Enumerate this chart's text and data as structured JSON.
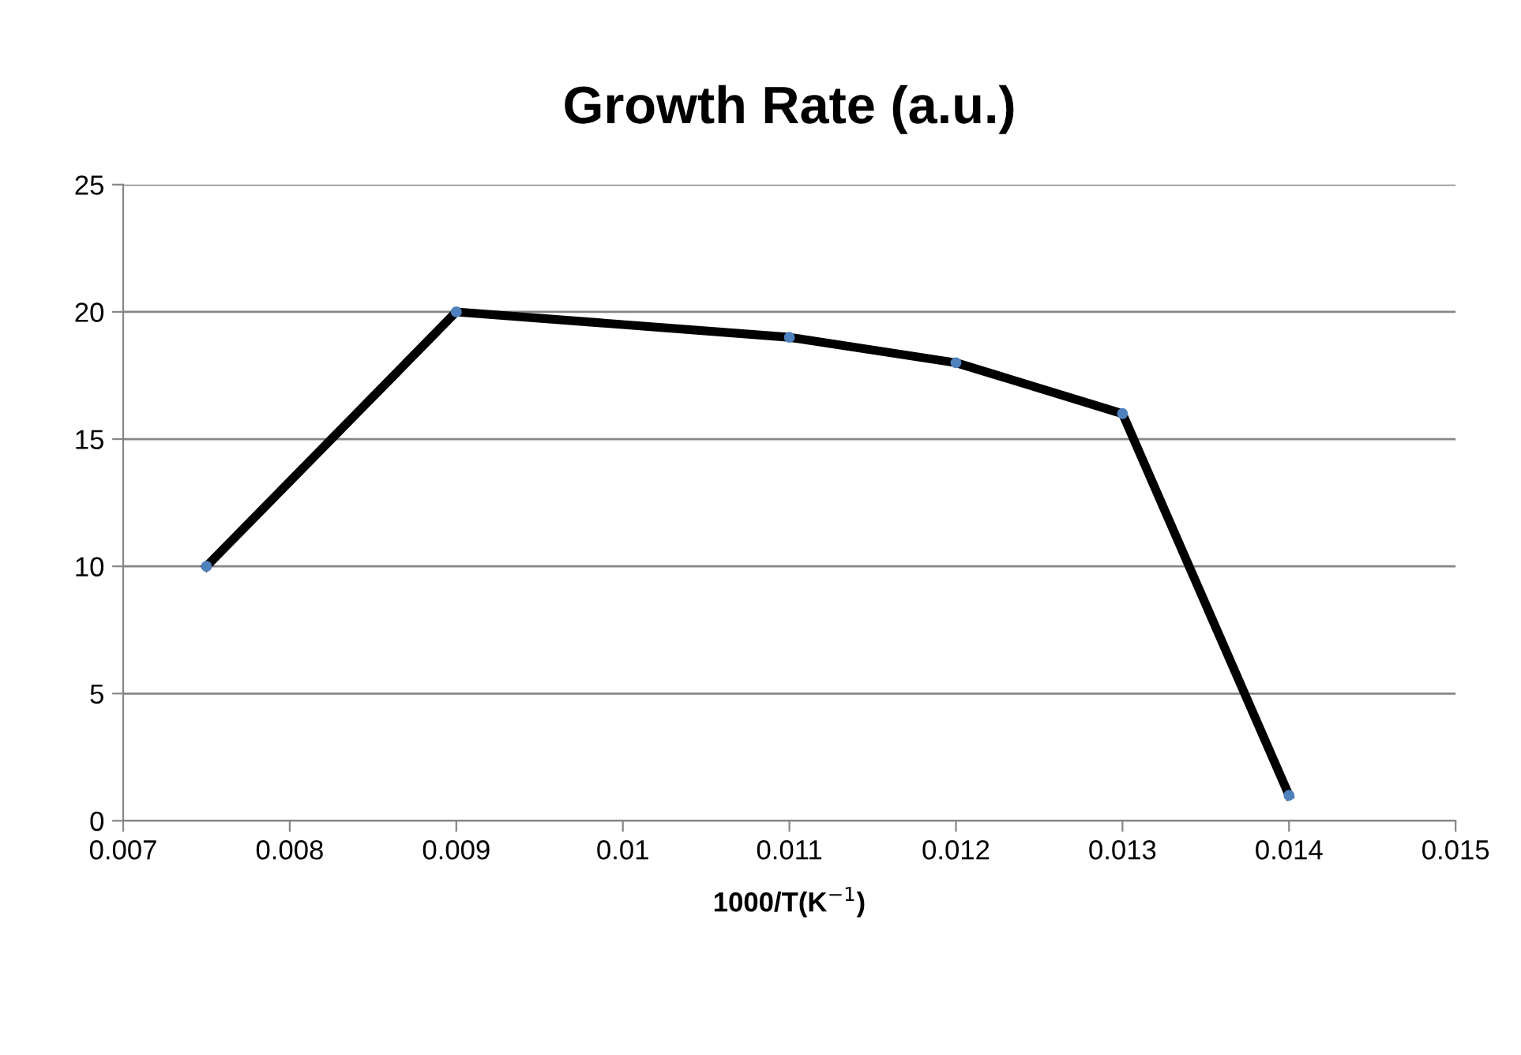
{
  "chart_data": {
    "type": "line",
    "title": "Growth Rate (a.u.)",
    "xlabel": "1000/T(K$^{−1}$)",
    "x": [
      0.0075,
      0.009,
      0.011,
      0.012,
      0.013,
      0.014
    ],
    "series": [
      {
        "color": "#000000",
        "values": [
          10,
          20,
          19,
          18,
          16,
          1
        ]
      }
    ],
    "xlim": [
      0.007,
      0.015
    ],
    "xticks": [
      0.007,
      0.008,
      0.009,
      0.01,
      0.011,
      0.012,
      0.013,
      0.014,
      0.015
    ],
    "ylim": [
      0,
      25
    ],
    "yticks": [
      0,
      5,
      10,
      15,
      20,
      25
    ],
    "grid": "y",
    "marker": "circle",
    "line_style": "solid"
  }
}
